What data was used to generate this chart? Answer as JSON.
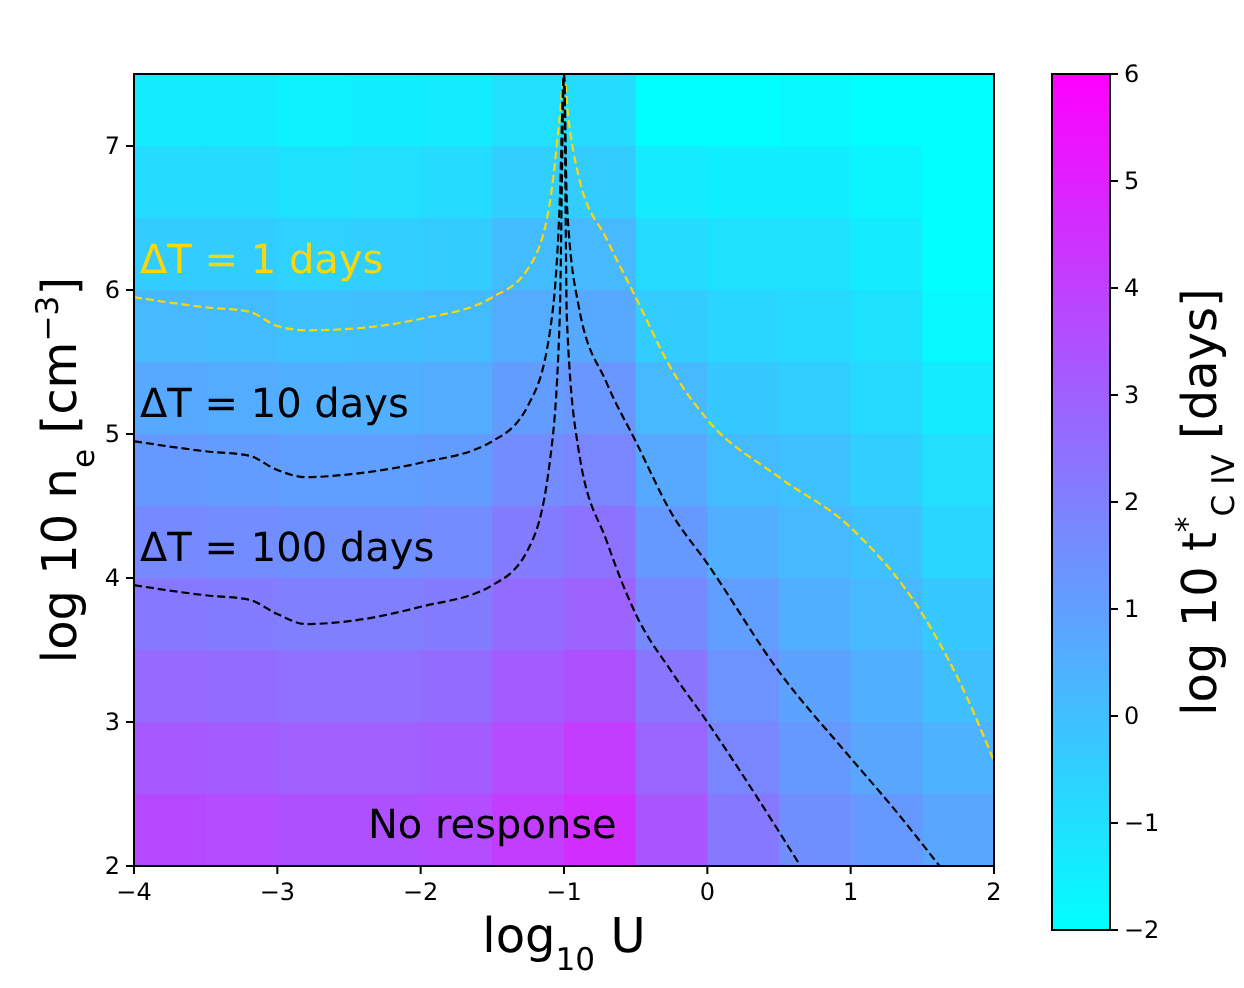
{
  "chart_data": {
    "type": "heatmap",
    "xlabel": "log$_{10}$ U",
    "ylabel": "log 10 n$_{e}$ [cm$^{−3}$]",
    "clabel": "log 10 t$^{*}$$_{C IV}$ [days]",
    "xlim": [
      -4,
      2
    ],
    "xticks": [
      -4,
      -3,
      -2,
      -1,
      0,
      1,
      2
    ],
    "ylim": [
      2,
      7.5
    ],
    "yticks": [
      2,
      3,
      4,
      5,
      6,
      7
    ],
    "clim": [
      -2,
      6
    ],
    "cticks": [
      -2,
      -1,
      0,
      1,
      2,
      3,
      4,
      5,
      6
    ],
    "cells": [
      [
        -1.4,
        -1.4,
        -1.6,
        -1.5,
        -1.4,
        -1.0,
        -0.9,
        -2,
        -2,
        -1.8,
        -2,
        -2
      ],
      [
        -0.9,
        -0.9,
        -1.1,
        -1.0,
        -0.9,
        -0.5,
        -0.4,
        -1.4,
        -1.5,
        -1.5,
        -1.7,
        -2
      ],
      [
        -0.4,
        -0.4,
        -0.6,
        -0.5,
        -0.4,
        0.1,
        0.2,
        -0.9,
        -1.1,
        -1.1,
        -1.4,
        -2
      ],
      [
        0.2,
        0.1,
        -0.1,
        0,
        0.1,
        0.6,
        0.7,
        -0.4,
        -0.7,
        -0.8,
        -1.1,
        -1.8
      ],
      [
        0.7,
        0.6,
        0.5,
        0.5,
        0.6,
        1.1,
        1.3,
        0.2,
        -0.3,
        -0.5,
        -0.8,
        -1.4
      ],
      [
        1.2,
        1.1,
        1.0,
        1.0,
        1.1,
        1.6,
        1.8,
        0.7,
        0.1,
        -0.1,
        -0.5,
        -1.0
      ],
      [
        1.7,
        1.6,
        1.5,
        1.5,
        1.6,
        2.1,
        2.4,
        1.2,
        0.5,
        0.2,
        -0.1,
        -0.7
      ],
      [
        2.2,
        2.1,
        2.0,
        2.0,
        2.1,
        2.6,
        2.9,
        1.7,
        1.0,
        0.5,
        0.2,
        -0.3
      ],
      [
        2.7,
        2.6,
        2.5,
        2.5,
        2.6,
        3.1,
        3.5,
        2.3,
        1.4,
        0.9,
        0.5,
        0.0
      ],
      [
        3.2,
        3.1,
        3.0,
        3.0,
        3.1,
        3.6,
        4.1,
        2.8,
        1.8,
        1.2,
        0.8,
        0.4
      ],
      [
        3.7,
        3.6,
        3.5,
        3.5,
        3.6,
        4.1,
        4.6,
        3.3,
        2.2,
        1.5,
        1.2,
        0.8
      ]
    ],
    "line_style": "dashed",
    "series": [
      {
        "type": "line",
        "name": "ΔT = 1 days",
        "color": "#ffd700",
        "x": [
          -4,
          -3.5,
          -3.2,
          -3.0,
          -2.8,
          -2.5,
          -2.0,
          -1.5,
          -1.25,
          -1.1,
          -1.03,
          -1.0,
          -0.97,
          -0.9,
          -0.7,
          -0.5,
          -0.25,
          0,
          0.5,
          1.0,
          1.5,
          1.75,
          2.0
        ],
        "values": [
          5.95,
          5.88,
          5.85,
          5.75,
          5.72,
          5.73,
          5.8,
          5.95,
          6.15,
          6.6,
          7.2,
          7.5,
          7.2,
          6.8,
          6.35,
          5.95,
          5.45,
          5.1,
          4.7,
          4.35,
          3.75,
          3.3,
          2.73
        ]
      },
      {
        "type": "line",
        "name": "ΔT = 10 days",
        "color": "#000000",
        "x": [
          -4,
          -3.5,
          -3.2,
          -3.0,
          -2.8,
          -2.5,
          -2.0,
          -1.5,
          -1.25,
          -1.1,
          -1.03,
          -1.0,
          -0.98,
          -0.9,
          -0.7,
          -0.5,
          -0.25,
          0,
          0.5,
          1.0,
          1.3,
          1.62
        ],
        "values": [
          4.95,
          4.88,
          4.85,
          4.75,
          4.7,
          4.72,
          4.8,
          4.95,
          5.2,
          5.7,
          6.6,
          7.5,
          6.6,
          5.9,
          5.35,
          4.95,
          4.45,
          4.1,
          3.35,
          2.75,
          2.4,
          2.0
        ]
      },
      {
        "type": "line",
        "name": "ΔT = 100 days",
        "color": "#000000",
        "x": [
          -4,
          -3.5,
          -3.2,
          -3.0,
          -2.8,
          -2.5,
          -2.0,
          -1.5,
          -1.25,
          -1.1,
          -1.03,
          -1.0,
          -0.98,
          -0.9,
          -0.7,
          -0.5,
          -0.25,
          0,
          0.3,
          0.65
        ],
        "values": [
          3.95,
          3.88,
          3.85,
          3.75,
          3.68,
          3.7,
          3.8,
          3.95,
          4.2,
          4.8,
          5.8,
          7.5,
          5.8,
          4.9,
          4.25,
          3.75,
          3.35,
          3.0,
          2.55,
          2.0
        ]
      }
    ],
    "annotations": [
      "No response"
    ]
  }
}
